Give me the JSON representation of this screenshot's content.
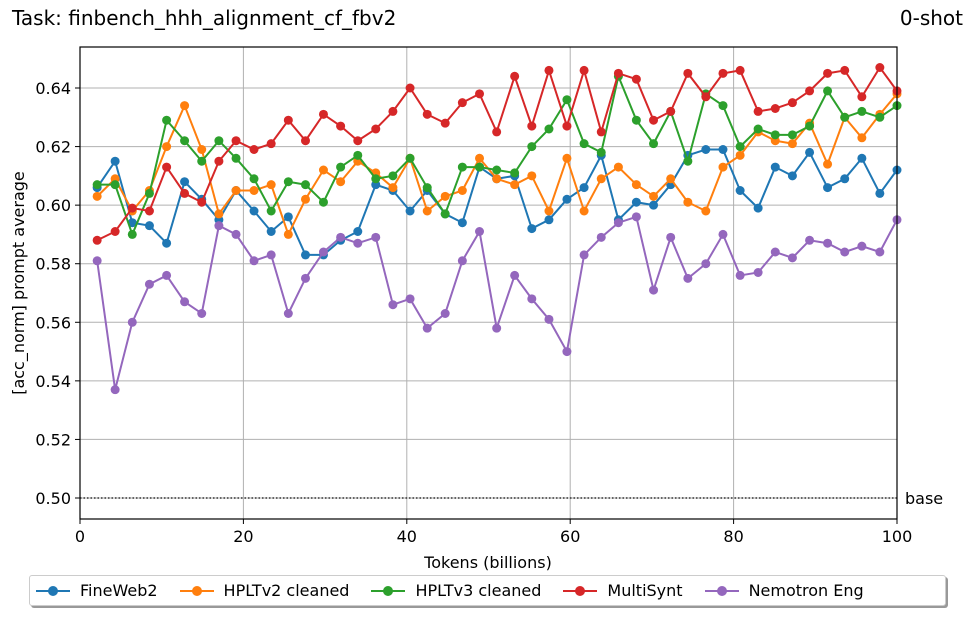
{
  "header": {
    "task_title": "Task: finbench_hhh_alignment_cf_fbv2",
    "shot_label": "0-shot"
  },
  "chart_data": {
    "type": "line",
    "title": "Task: finbench_hhh_alignment_cf_fbv2",
    "subtitle": "0-shot",
    "xlabel": "Tokens (billions)",
    "ylabel": "[acc_norm] prompt average",
    "xlim": [
      0,
      100
    ],
    "ylim": [
      0.493,
      0.654
    ],
    "xticks": [
      0,
      20,
      40,
      60,
      80,
      100
    ],
    "yticks": [
      0.5,
      0.52,
      0.54,
      0.56,
      0.58,
      0.6,
      0.62,
      0.64
    ],
    "ytick_labels": [
      "0.50",
      "0.52",
      "0.54",
      "0.56",
      "0.58",
      "0.60",
      "0.62",
      "0.64"
    ],
    "grid": true,
    "legend_position": "bottom-center-outside",
    "baseline": {
      "label": "base",
      "value": 0.5,
      "style": "dotted"
    },
    "x": [
      2.1,
      4.3,
      6.4,
      8.5,
      10.6,
      12.8,
      14.9,
      17.0,
      19.1,
      21.3,
      23.4,
      25.5,
      27.6,
      29.8,
      31.9,
      34.0,
      36.2,
      38.3,
      40.4,
      42.5,
      44.7,
      46.8,
      48.9,
      51.0,
      53.2,
      55.3,
      57.4,
      59.6,
      61.7,
      63.8,
      65.9,
      68.1,
      70.2,
      72.3,
      74.4,
      76.6,
      78.7,
      80.8,
      83.0,
      85.1,
      87.2,
      89.3,
      91.5,
      93.6,
      95.7,
      97.9,
      100.0
    ],
    "series": [
      {
        "name": "FineWeb2",
        "color": "#1f77b4",
        "values": [
          0.606,
          0.615,
          0.594,
          0.593,
          0.587,
          0.608,
          0.602,
          0.595,
          0.605,
          0.598,
          0.591,
          0.596,
          0.583,
          0.583,
          0.588,
          0.591,
          0.607,
          0.605,
          0.598,
          0.605,
          0.597,
          0.594,
          0.613,
          0.609,
          0.61,
          0.592,
          0.595,
          0.602,
          0.606,
          0.617,
          0.595,
          0.601,
          0.6,
          0.607,
          0.617,
          0.619,
          0.619,
          0.605,
          0.599,
          0.613,
          0.61,
          0.618,
          0.606,
          0.609,
          0.616,
          0.604,
          0.612
        ]
      },
      {
        "name": "HPLTv2 cleaned",
        "color": "#ff7f0e",
        "values": [
          0.603,
          0.609,
          0.598,
          0.605,
          0.62,
          0.634,
          0.619,
          0.597,
          0.605,
          0.605,
          0.607,
          0.59,
          0.602,
          0.612,
          0.608,
          0.615,
          0.611,
          0.606,
          0.616,
          0.598,
          0.603,
          0.605,
          0.616,
          0.609,
          0.607,
          0.61,
          0.598,
          0.616,
          0.598,
          0.609,
          0.613,
          0.607,
          0.603,
          0.609,
          0.601,
          0.598,
          0.613,
          0.617,
          0.625,
          0.622,
          0.621,
          0.628,
          0.614,
          0.63,
          0.623,
          0.631,
          0.638
        ]
      },
      {
        "name": "HPLTv3 cleaned",
        "color": "#2ca02c",
        "values": [
          0.607,
          0.607,
          0.59,
          0.604,
          0.629,
          0.622,
          0.615,
          0.622,
          0.616,
          0.609,
          0.598,
          0.608,
          0.607,
          0.601,
          0.613,
          0.617,
          0.609,
          0.61,
          0.616,
          0.606,
          0.597,
          0.613,
          0.613,
          0.612,
          0.611,
          0.62,
          0.626,
          0.636,
          0.621,
          0.618,
          0.644,
          0.629,
          0.621,
          0.632,
          0.615,
          0.638,
          0.634,
          0.62,
          0.626,
          0.624,
          0.624,
          0.627,
          0.639,
          0.63,
          0.632,
          0.63,
          0.634
        ]
      },
      {
        "name": "MultiSynt",
        "color": "#d62728",
        "values": [
          0.588,
          0.591,
          0.599,
          0.598,
          0.613,
          0.604,
          0.601,
          0.615,
          0.622,
          0.619,
          0.621,
          0.629,
          0.622,
          0.631,
          0.627,
          0.622,
          0.626,
          0.632,
          0.64,
          0.631,
          0.628,
          0.635,
          0.638,
          0.625,
          0.644,
          0.627,
          0.646,
          0.627,
          0.646,
          0.625,
          0.645,
          0.643,
          0.629,
          0.632,
          0.645,
          0.637,
          0.645,
          0.646,
          0.632,
          0.633,
          0.635,
          0.639,
          0.645,
          0.646,
          0.637,
          0.647,
          0.639
        ]
      },
      {
        "name": "Nemotron Eng",
        "color": "#9467bd",
        "values": [
          0.581,
          0.537,
          0.56,
          0.573,
          0.576,
          0.567,
          0.563,
          0.593,
          0.59,
          0.581,
          0.583,
          0.563,
          0.575,
          0.584,
          0.589,
          0.587,
          0.589,
          0.566,
          0.568,
          0.558,
          0.563,
          0.581,
          0.591,
          0.558,
          0.576,
          0.568,
          0.561,
          0.55,
          0.583,
          0.589,
          0.594,
          0.596,
          0.571,
          0.589,
          0.575,
          0.58,
          0.59,
          0.576,
          0.577,
          0.584,
          0.582,
          0.588,
          0.587,
          0.584,
          0.586,
          0.584,
          0.595
        ]
      }
    ]
  },
  "legend": {
    "items": [
      {
        "label": "FineWeb2",
        "color": "#1f77b4"
      },
      {
        "label": "HPLTv2 cleaned",
        "color": "#ff7f0e"
      },
      {
        "label": "HPLTv3 cleaned",
        "color": "#2ca02c"
      },
      {
        "label": "MultiSynt",
        "color": "#d62728"
      },
      {
        "label": "Nemotron Eng",
        "color": "#9467bd"
      }
    ]
  }
}
